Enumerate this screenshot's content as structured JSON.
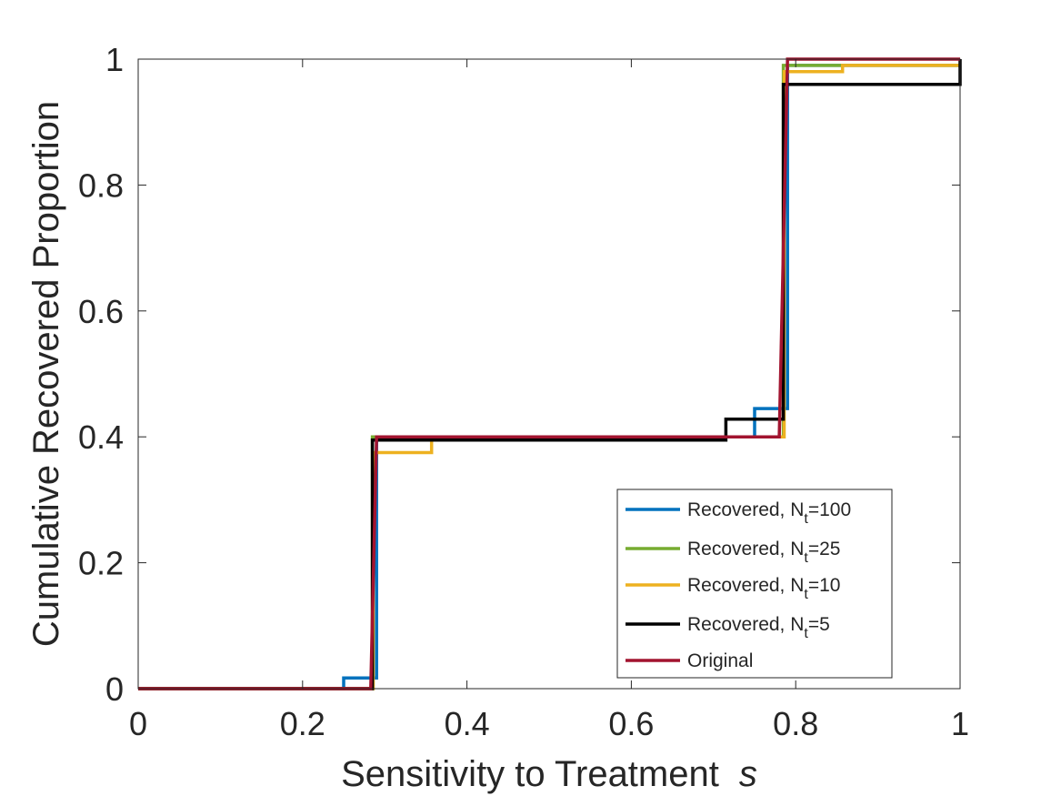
{
  "chart_data": {
    "type": "line",
    "subtype": "step",
    "xlabel": "Sensitivity to Treatment",
    "xlabel_symbol": "s",
    "ylabel": "Cumulative Recovered Proportion",
    "xlim": [
      0,
      1
    ],
    "ylim": [
      0,
      1
    ],
    "xticks": [
      0,
      0.2,
      0.4,
      0.6,
      0.8,
      1
    ],
    "yticks": [
      0,
      0.2,
      0.4,
      0.6,
      0.8,
      1
    ],
    "xtick_labels": [
      "0",
      "0.2",
      "0.4",
      "0.6",
      "0.8",
      "1"
    ],
    "ytick_labels": [
      "0",
      "0.2",
      "0.4",
      "0.6",
      "0.8",
      "1"
    ],
    "grid": false,
    "legend_position": "lower-right",
    "series": [
      {
        "name_prefix": "Recovered, N",
        "name_sub": "t",
        "name_suffix": "=100",
        "color": "#0072BD",
        "x": [
          0,
          0.25,
          0.25,
          0.29,
          0.29,
          0.75,
          0.75,
          0.79,
          0.79,
          0.86,
          0.86,
          1
        ],
        "y": [
          0,
          0,
          0.017,
          0.017,
          0.4,
          0.4,
          0.445,
          0.445,
          0.99,
          0.99,
          0.99,
          0.99
        ]
      },
      {
        "name_prefix": "Recovered, N",
        "name_sub": "t",
        "name_suffix": "=25",
        "color": "#77AC30",
        "x": [
          0,
          0.285,
          0.285,
          0.785,
          0.785,
          1
        ],
        "y": [
          0,
          0,
          0.4,
          0.4,
          0.99,
          0.99
        ]
      },
      {
        "name_prefix": "Recovered, N",
        "name_sub": "t",
        "name_suffix": "=10",
        "color": "#EDB120",
        "x": [
          0,
          0.286,
          0.286,
          0.357,
          0.357,
          0.786,
          0.786,
          0.857,
          0.857,
          1
        ],
        "y": [
          0,
          0,
          0.375,
          0.375,
          0.4,
          0.4,
          0.98,
          0.98,
          0.99,
          0.99
        ]
      },
      {
        "name_prefix": "Recovered, N",
        "name_sub": "t",
        "name_suffix": "=5",
        "color": "#000000",
        "x": [
          0,
          0.285,
          0.285,
          0.715,
          0.715,
          0.785,
          0.785,
          1,
          1
        ],
        "y": [
          0,
          0,
          0.395,
          0.395,
          0.428,
          0.428,
          0.96,
          0.96,
          1.0
        ]
      },
      {
        "name": "Original",
        "color": "#A2142F",
        "x": [
          0,
          0.283,
          0.29,
          0.78,
          0.79,
          1
        ],
        "y": [
          0,
          0,
          0.4,
          0.4,
          1.0,
          1.0
        ]
      }
    ]
  }
}
